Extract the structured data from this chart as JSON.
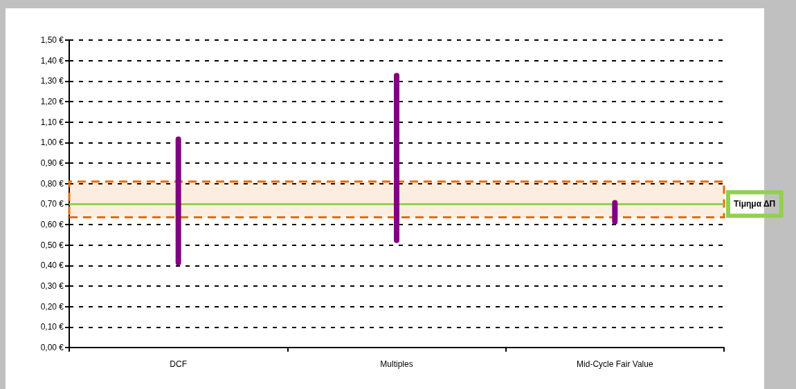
{
  "chart_data": {
    "type": "bar",
    "categories": [
      "DCF",
      "Multiples",
      "Mid-Cycle Fair Value"
    ],
    "base": [
      0.4,
      0.51,
      0.6
    ],
    "values": [
      0.63,
      0.83,
      0.12
    ],
    "color": "#800080",
    "ylim": [
      0,
      1.5
    ],
    "yticks": [
      {
        "value": 0,
        "label": "0,00 €"
      },
      {
        "value": 0.1,
        "label": "0,10 €"
      },
      {
        "value": 0.2,
        "label": "0,20 €"
      },
      {
        "value": 0.3,
        "label": "0,30 €"
      },
      {
        "value": 0.4,
        "label": "0,40 €"
      },
      {
        "value": 0.5,
        "label": "0,50 €"
      },
      {
        "value": 0.6,
        "label": "0,60 €"
      },
      {
        "value": 0.7,
        "label": "0,70 €"
      },
      {
        "value": 0.8,
        "label": "0,80 €"
      },
      {
        "value": 0.9,
        "label": "0,90 €"
      },
      {
        "value": 1.0,
        "label": "1,00 €"
      },
      {
        "value": 1.1,
        "label": "1,10 €"
      },
      {
        "value": 1.2,
        "label": "1,20 €"
      },
      {
        "value": 1.3,
        "label": "1,30 €"
      },
      {
        "value": 1.4,
        "label": "1,40 €"
      },
      {
        "value": 1.5,
        "label": "1,50 €"
      }
    ],
    "grid": "y",
    "ref_lines": [
      {
        "axis": "y",
        "value": 0.7,
        "label": "Τίμημα ΔΠ",
        "color": "#92d050",
        "line_style": "solid"
      }
    ],
    "bands": [
      {
        "axis": "y",
        "from": 0.635,
        "to": 0.81,
        "color": "#e36c09"
      }
    ]
  }
}
